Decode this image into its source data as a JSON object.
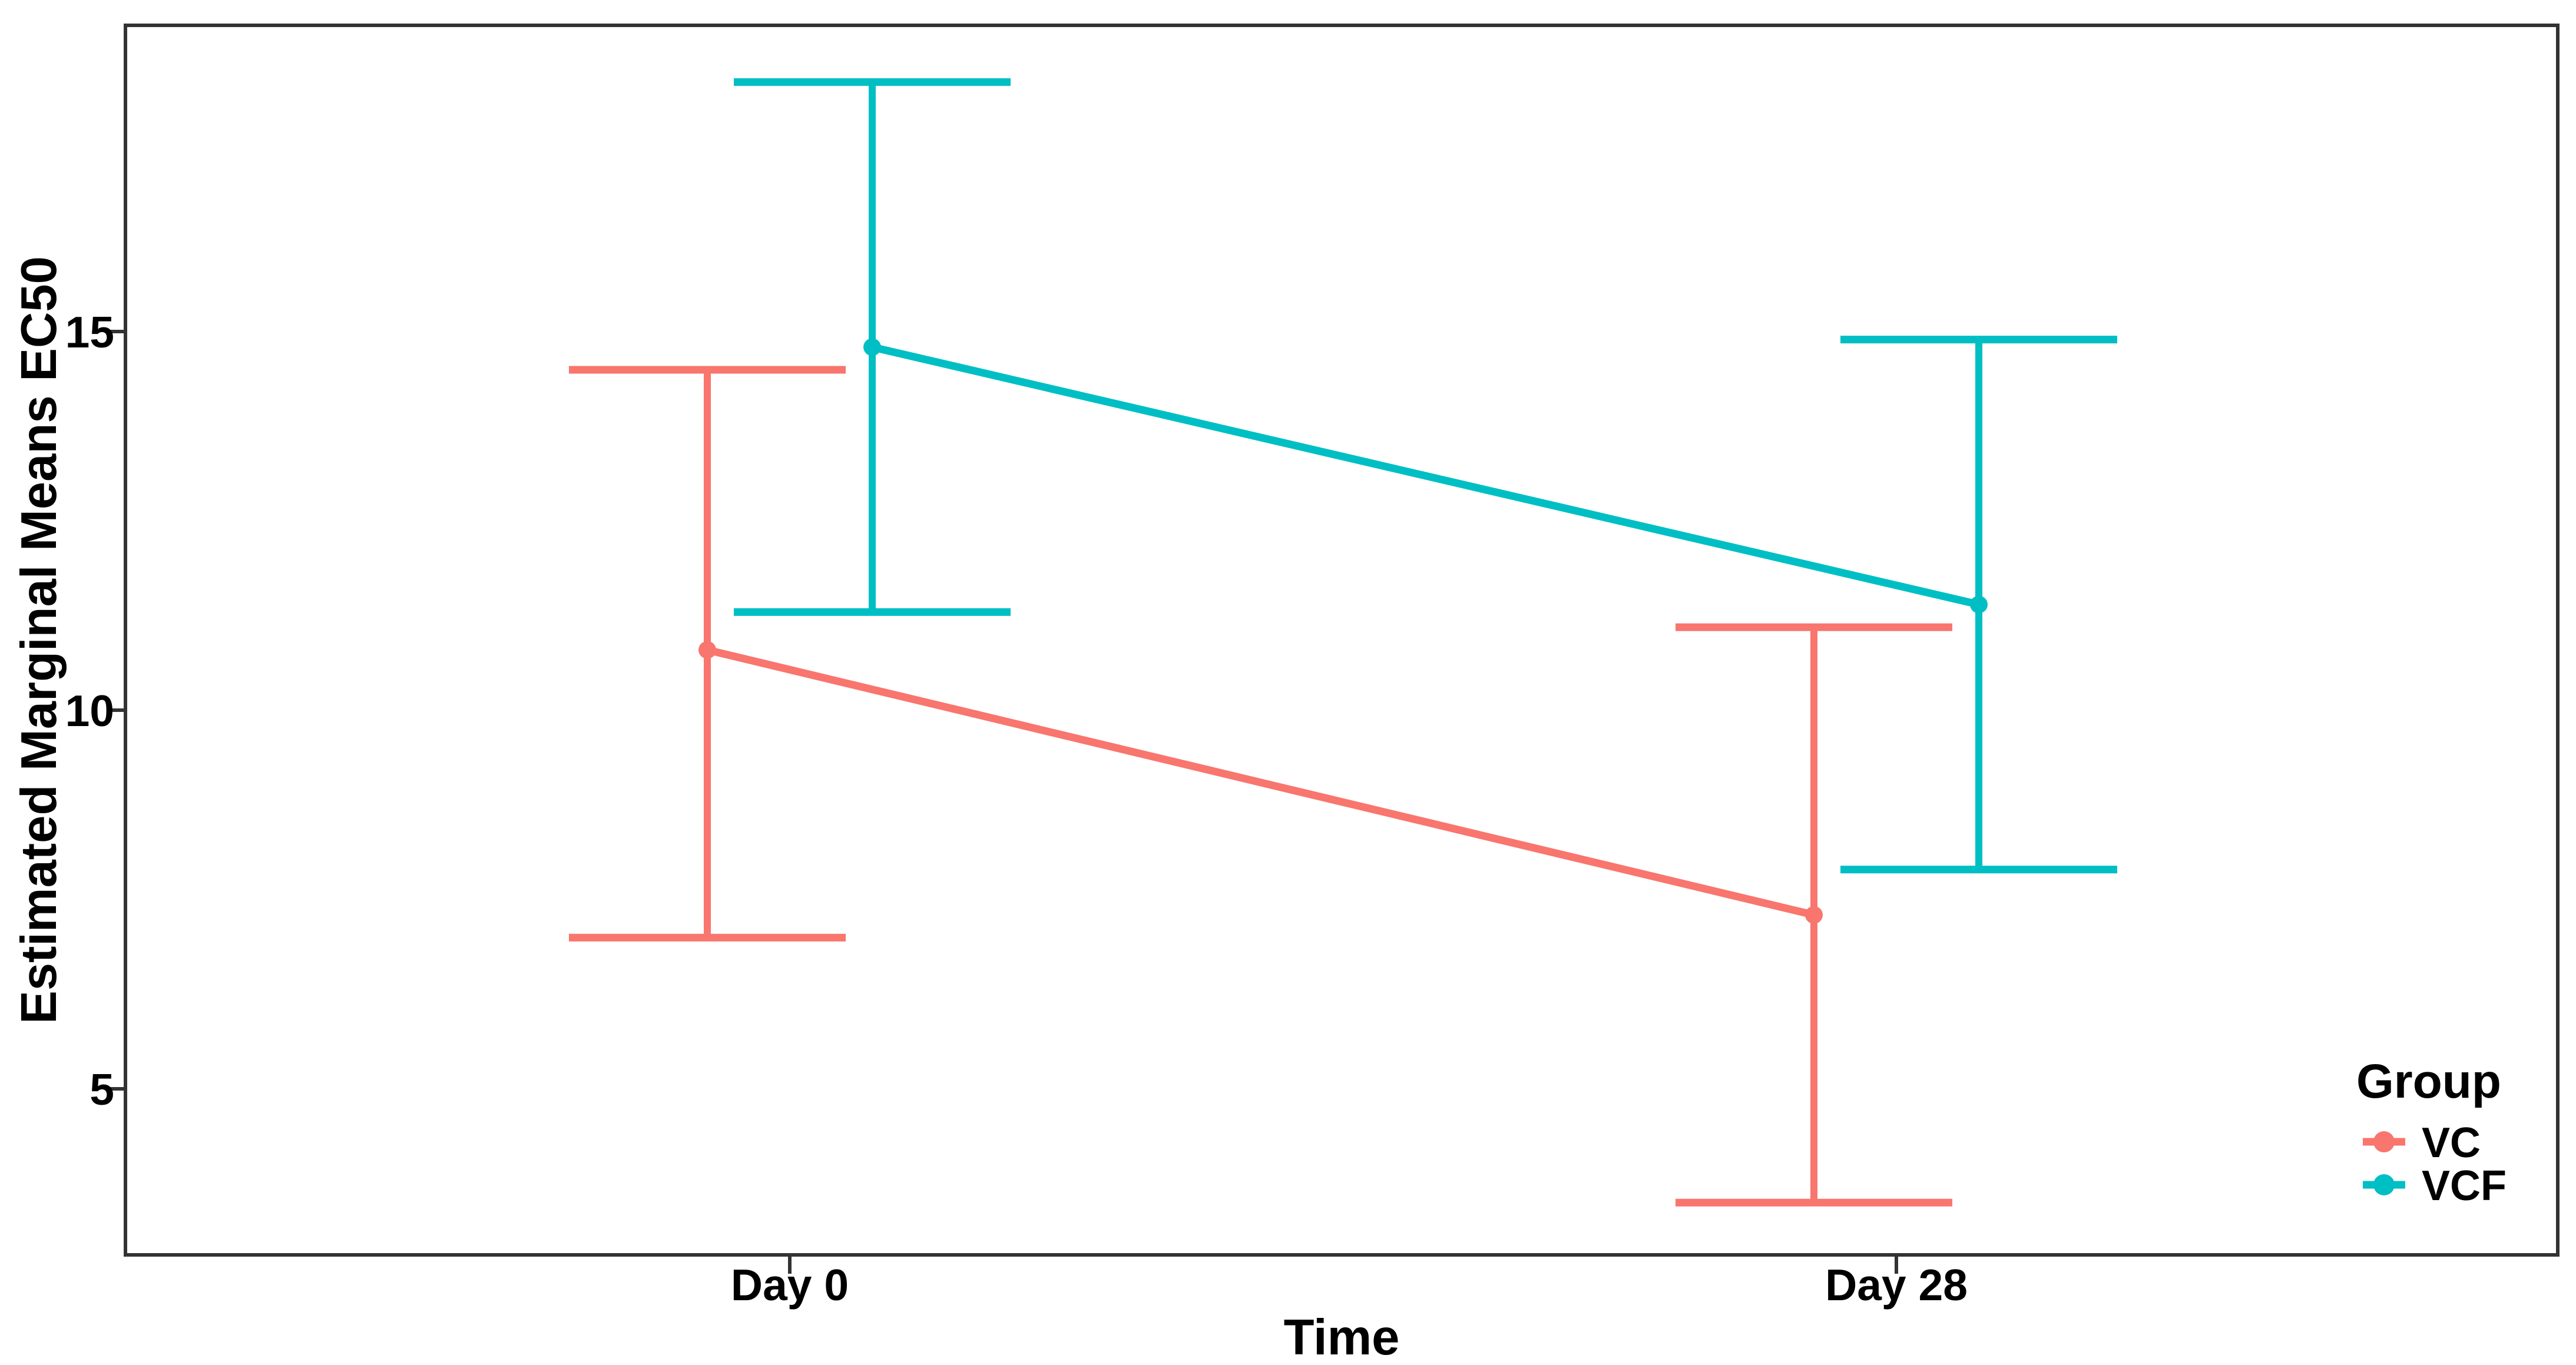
{
  "figure": {
    "background": "#ffffff",
    "panel_border_color": "#333333",
    "tick_color": "#333333",
    "text_color": "#000000"
  },
  "chart_data": {
    "type": "line",
    "title": "",
    "xlabel": "Time",
    "ylabel": "Estimated Marginal Means EC50",
    "categories": [
      "Day 0",
      "Day 28"
    ],
    "y_ticks": [
      15,
      10,
      5
    ],
    "ylim": [
      2.81,
      19.05
    ],
    "grid": false,
    "legend_position": "inside-bottom-right",
    "series": [
      {
        "name": "VC",
        "color": "#F8766D",
        "means": [
          10.8,
          7.3
        ],
        "ci_lower": [
          7.0,
          3.5
        ],
        "ci_upper": [
          14.5,
          11.1
        ]
      },
      {
        "name": "VCF",
        "color": "#00BFC4",
        "means": [
          14.8,
          11.4
        ],
        "ci_lower": [
          11.3,
          7.9
        ],
        "ci_upper": [
          18.3,
          14.9
        ]
      }
    ]
  },
  "axes": {
    "y_tick_labels": [
      "15",
      "10",
      "5"
    ],
    "x_tick_labels": [
      "Day 0",
      "Day 28"
    ],
    "x_title": "Time",
    "y_title": "Estimated Marginal Means EC50"
  },
  "legend": {
    "title": "Group",
    "items": [
      {
        "label": "VC"
      },
      {
        "label": "VCF"
      }
    ]
  }
}
